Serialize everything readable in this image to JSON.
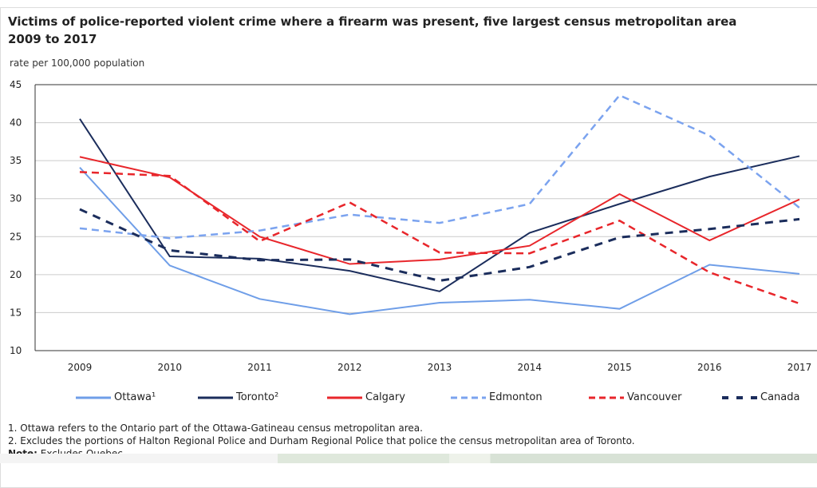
{
  "chart_data": {
    "type": "line",
    "title": "Victims of police-reported violent crime where a firearm was present, five largest census metropolitan areas, 2009 to 2017",
    "title_line1": "Victims of police-reported violent crime where a firearm was present, five largest census metropolitan area",
    "title_line2": "2009 to 2017",
    "ylabel": "rate per 100,000 population",
    "xlabel": "",
    "ylim": [
      10,
      45
    ],
    "yticks": [
      "10",
      "15",
      "20",
      "25",
      "30",
      "35",
      "40",
      "45"
    ],
    "categories": [
      "2009",
      "2010",
      "2011",
      "2012",
      "2013",
      "2014",
      "2015",
      "2016",
      "2017"
    ],
    "grid": true,
    "legend_position": "bottom",
    "series": [
      {
        "name": "Ottawa¹",
        "color": "#6f9ee8",
        "dash": "solid",
        "values": [
          34.1,
          21.2,
          16.8,
          14.8,
          16.3,
          16.7,
          15.5,
          21.3,
          20.1
        ]
      },
      {
        "name": "Toronto²",
        "color": "#1b2d5c",
        "dash": "solid",
        "values": [
          40.5,
          22.4,
          22.1,
          20.5,
          17.8,
          25.5,
          29.3,
          32.9,
          35.6
        ]
      },
      {
        "name": "Calgary",
        "color": "#e8262b",
        "dash": "solid",
        "values": [
          35.5,
          32.8,
          25.0,
          21.4,
          22.0,
          23.8,
          30.6,
          24.5,
          29.9
        ]
      },
      {
        "name": "Edmonton",
        "color": "#7ba3ef",
        "dash": "dashed",
        "values": [
          26.1,
          24.8,
          25.8,
          27.9,
          26.8,
          29.3,
          43.6,
          38.3,
          28.8
        ]
      },
      {
        "name": "Vancouver",
        "color": "#e8262b",
        "dash": "dashed",
        "values": [
          33.5,
          33.0,
          24.4,
          29.5,
          22.9,
          22.8,
          27.1,
          20.3,
          16.2
        ]
      },
      {
        "name": "Canada",
        "color": "#1b2d5c",
        "dash": "dashed-bold",
        "values": [
          28.6,
          23.2,
          21.9,
          22.0,
          19.2,
          21.0,
          24.9,
          26.0,
          27.3
        ]
      }
    ]
  },
  "footnotes": [
    "1. Ottawa refers to the Ontario part of the Ottawa-Gatineau census metropolitan area.",
    "2. Excludes the portions of Halton Regional Police and Durham Regional Police that police the census metropolitan area of Toronto."
  ],
  "note_label": "Note:",
  "note_text": " Excludes Quebec."
}
